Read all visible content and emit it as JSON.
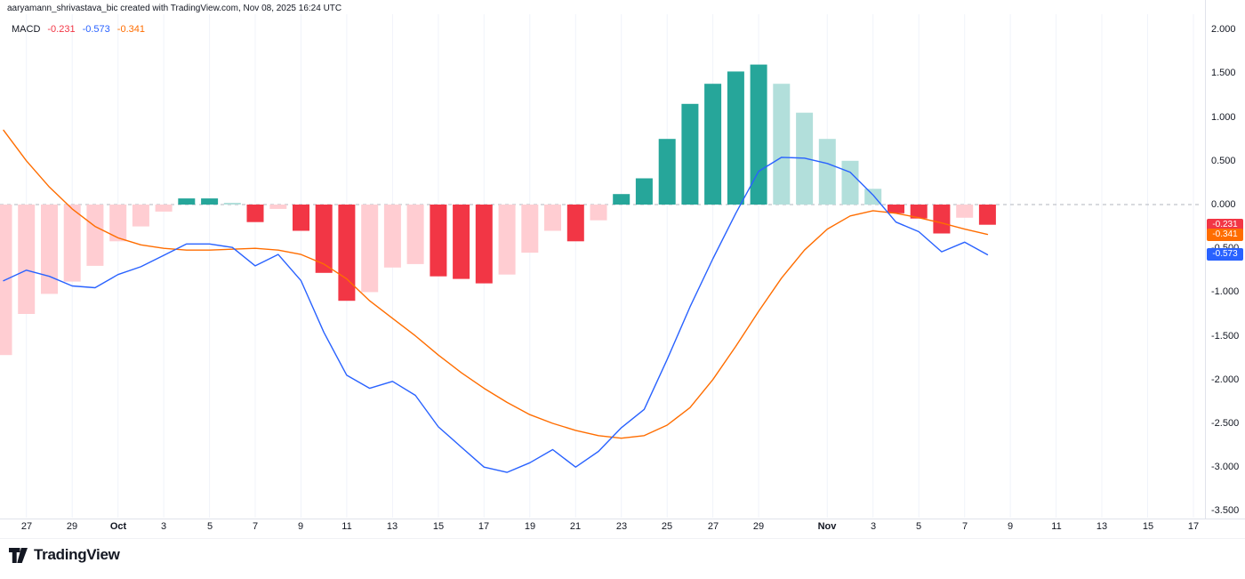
{
  "attribution": "aaryamann_shrivastava_bic created with TradingView.com, Nov 08, 2025 16:24 UTC",
  "legend": {
    "indicator": "MACD",
    "histogram_value": "-0.231",
    "macd_value": "-0.573",
    "signal_value": "-0.341"
  },
  "footer": {
    "brand": "TradingView"
  },
  "colors": {
    "hist_grow_above": "#26A69A",
    "hist_fall_above": "#B2DFDB",
    "hist_grow_below": "#FFCDD2",
    "hist_fall_below": "#F23645",
    "macd_line": "#2962FF",
    "signal_line": "#FF6D00",
    "zero_line": "#B2B5BE",
    "grid": "#F0F3FA",
    "axis_text": "#131722"
  },
  "price_labels": [
    {
      "text": "-0.231",
      "value": -0.231,
      "color": "#F23645"
    },
    {
      "text": "-0.341",
      "value": -0.341,
      "color": "#FF6D00"
    },
    {
      "text": "-0.573",
      "value": -0.573,
      "color": "#2962FF"
    }
  ],
  "chart_data": {
    "type": "bar",
    "indicator": "MACD",
    "title": "MACD histogram with MACD and signal lines",
    "ylim": [
      -3.5,
      2.0
    ],
    "grid": "vertical-only",
    "zero_line": "dashed",
    "y_axis": {
      "tick_labels": [
        {
          "value": 2.0,
          "label": "2.000"
        },
        {
          "value": 1.5,
          "label": "1.500"
        },
        {
          "value": 1.0,
          "label": "1.000"
        },
        {
          "value": 0.5,
          "label": "0.500"
        },
        {
          "value": 0.0,
          "label": "0.000"
        },
        {
          "value": -0.5,
          "label": "-0.500"
        },
        {
          "value": -1.0,
          "label": "-1.000"
        },
        {
          "value": -1.5,
          "label": "-1.500"
        },
        {
          "value": -2.0,
          "label": "-2.000"
        },
        {
          "value": -2.5,
          "label": "-2.500"
        },
        {
          "value": -3.0,
          "label": "-3.000"
        },
        {
          "value": -3.5,
          "label": "-3.500"
        }
      ]
    },
    "x_axis": {
      "tick_labels": [
        {
          "index": 1,
          "label": "27"
        },
        {
          "index": 3,
          "label": "29"
        },
        {
          "index": 5,
          "label": "Oct",
          "bold": true
        },
        {
          "index": 7,
          "label": "3"
        },
        {
          "index": 9,
          "label": "5"
        },
        {
          "index": 11,
          "label": "7"
        },
        {
          "index": 13,
          "label": "9"
        },
        {
          "index": 15,
          "label": "11"
        },
        {
          "index": 17,
          "label": "13"
        },
        {
          "index": 19,
          "label": "15"
        },
        {
          "index": 21,
          "label": "17"
        },
        {
          "index": 23,
          "label": "19"
        },
        {
          "index": 25,
          "label": "21"
        },
        {
          "index": 27,
          "label": "23"
        },
        {
          "index": 29,
          "label": "25"
        },
        {
          "index": 31,
          "label": "27"
        },
        {
          "index": 33,
          "label": "29"
        },
        {
          "index": 36,
          "label": "Nov",
          "bold": true
        },
        {
          "index": 38,
          "label": "3"
        },
        {
          "index": 40,
          "label": "5"
        },
        {
          "index": 42,
          "label": "7"
        },
        {
          "index": 44,
          "label": "9"
        },
        {
          "index": 46,
          "label": "11"
        },
        {
          "index": 48,
          "label": "13"
        },
        {
          "index": 50,
          "label": "15"
        },
        {
          "index": 52,
          "label": "17"
        }
      ]
    },
    "series": [
      {
        "name": "Histogram",
        "type": "bar",
        "values": [
          -1.72,
          -1.25,
          -1.02,
          -0.88,
          -0.7,
          -0.42,
          -0.25,
          -0.08,
          0.07,
          0.07,
          0.02,
          -0.2,
          -0.05,
          -0.3,
          -0.78,
          -1.1,
          -1.0,
          -0.72,
          -0.68,
          -0.82,
          -0.85,
          -0.9,
          -0.8,
          -0.55,
          -0.3,
          -0.42,
          -0.18,
          0.12,
          0.3,
          0.75,
          1.15,
          1.38,
          1.52,
          1.6,
          1.38,
          1.05,
          0.75,
          0.5,
          0.18,
          -0.1,
          -0.16,
          -0.33,
          -0.15,
          -0.231
        ]
      },
      {
        "name": "MACD line",
        "type": "line",
        "values": [
          -0.87,
          -0.75,
          -0.82,
          -0.93,
          -0.95,
          -0.8,
          -0.71,
          -0.58,
          -0.45,
          -0.45,
          -0.49,
          -0.7,
          -0.57,
          -0.87,
          -1.46,
          -1.95,
          -2.1,
          -2.02,
          -2.18,
          -2.54,
          -2.77,
          -3.0,
          -3.06,
          -2.95,
          -2.8,
          -3.0,
          -2.82,
          -2.55,
          -2.34,
          -1.77,
          -1.17,
          -0.62,
          -0.1,
          0.38,
          0.54,
          0.53,
          0.47,
          0.37,
          0.11,
          -0.2,
          -0.31,
          -0.54,
          -0.43,
          -0.573
        ]
      },
      {
        "name": "Signal line",
        "type": "line",
        "values": [
          0.85,
          0.5,
          0.2,
          -0.05,
          -0.25,
          -0.38,
          -0.46,
          -0.5,
          -0.52,
          -0.52,
          -0.51,
          -0.5,
          -0.52,
          -0.57,
          -0.68,
          -0.85,
          -1.1,
          -1.3,
          -1.5,
          -1.72,
          -1.92,
          -2.1,
          -2.26,
          -2.4,
          -2.5,
          -2.58,
          -2.64,
          -2.67,
          -2.64,
          -2.52,
          -2.32,
          -2.0,
          -1.62,
          -1.22,
          -0.84,
          -0.52,
          -0.28,
          -0.13,
          -0.07,
          -0.1,
          -0.15,
          -0.21,
          -0.28,
          -0.341
        ]
      }
    ]
  }
}
